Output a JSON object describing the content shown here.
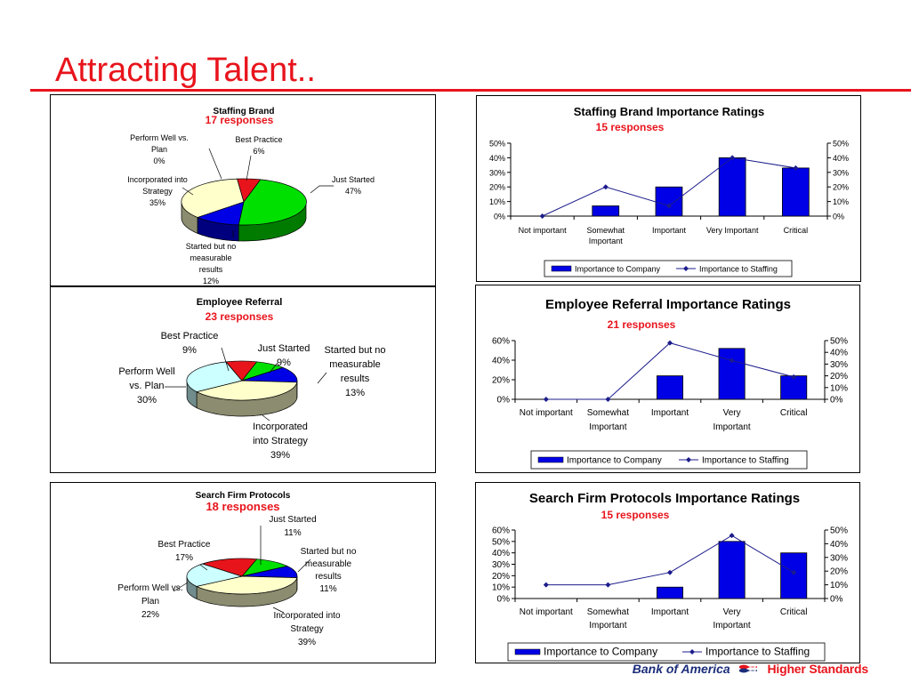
{
  "slide": {
    "title": "Attracting Talent..",
    "logo_text": "Bank of America",
    "tagline": "Higher Standards"
  },
  "colors": {
    "title_red": "#e8141c",
    "company_bar": "#0000e6",
    "staffing_line": "#1c1c8c"
  },
  "chart_data": [
    {
      "type": "pie",
      "title": "Staffing Brand",
      "subtitle": "17 responses",
      "slices": [
        {
          "label": "Just Started",
          "value": 47,
          "value_label": "47%",
          "color": "#00e000"
        },
        {
          "label": "Started but no measurable results",
          "value": 12,
          "value_label": "12%",
          "color": "#0000e6"
        },
        {
          "label": "Incorporated into Strategy",
          "value": 35,
          "value_label": "35%",
          "color": "#ffffcc"
        },
        {
          "label": "Perform Well vs. Plan",
          "value": 0,
          "value_label": "0%",
          "color": "#ccffff"
        },
        {
          "label": "Best Practice",
          "value": 6,
          "value_label": "6%",
          "color": "#e8141c"
        }
      ]
    },
    {
      "type": "bar",
      "title": "Staffing Brand Importance Ratings",
      "subtitle": "15 responses",
      "categories": [
        "Not important",
        "Somewhat Important",
        "Important",
        "Very Important",
        "Critical"
      ],
      "series": [
        {
          "name": "Importance to Company",
          "type": "bar",
          "axis": "left",
          "values": [
            0,
            7,
            20,
            40,
            33
          ]
        },
        {
          "name": "Importance to Staffing",
          "type": "line",
          "axis": "right",
          "values": [
            0,
            20,
            7,
            40,
            33
          ]
        }
      ],
      "ylim_left": [
        0,
        50
      ],
      "ylim_right": [
        0,
        50
      ],
      "yticks_left": [
        "0%",
        "10%",
        "20%",
        "30%",
        "40%",
        "50%"
      ],
      "yticks_right": [
        "0%",
        "10%",
        "20%",
        "30%",
        "40%",
        "50%"
      ],
      "legend": "bottom"
    },
    {
      "type": "pie",
      "title": "Employee Referral",
      "subtitle": "23  responses",
      "slices": [
        {
          "label": "Just Started",
          "value": 9,
          "value_label": "9%",
          "color": "#00e000"
        },
        {
          "label": "Started but no measurable results",
          "value": 13,
          "value_label": "13%",
          "color": "#0000e6"
        },
        {
          "label": "Incorporated into Strategy",
          "value": 39,
          "value_label": "39%",
          "color": "#ffffcc"
        },
        {
          "label": "Perform Well vs. Plan",
          "value": 30,
          "value_label": "30%",
          "color": "#ccffff"
        },
        {
          "label": "Best Practice",
          "value": 9,
          "value_label": "9%",
          "color": "#e8141c"
        }
      ]
    },
    {
      "type": "bar",
      "title": "Employee Referral Importance Ratings",
      "subtitle": "21 responses",
      "categories": [
        "Not important",
        "Somewhat Important",
        "Important",
        "Very Important",
        "Critical"
      ],
      "series": [
        {
          "name": "Importance to Company",
          "type": "bar",
          "axis": "left",
          "values": [
            0,
            0,
            24,
            52,
            24
          ]
        },
        {
          "name": "Importance to Staffing",
          "type": "line",
          "axis": "right",
          "values": [
            0,
            0,
            48,
            33,
            19
          ]
        }
      ],
      "ylim_left": [
        0,
        60
      ],
      "ylim_right": [
        0,
        50
      ],
      "yticks_left": [
        "0%",
        "20%",
        "40%",
        "60%"
      ],
      "yticks_right": [
        "0%",
        "10%",
        "20%",
        "30%",
        "40%",
        "50%"
      ],
      "legend": "bottom"
    },
    {
      "type": "pie",
      "title": "Search Firm Protocols",
      "subtitle": "18 responses",
      "slices": [
        {
          "label": "Just Started",
          "value": 11,
          "value_label": "11%",
          "color": "#00e000"
        },
        {
          "label": "Started but no measurable results",
          "value": 11,
          "value_label": "11%",
          "color": "#0000e6"
        },
        {
          "label": "Incorporated into Strategy",
          "value": 39,
          "value_label": "39%",
          "color": "#ffffcc"
        },
        {
          "label": "Perform Well vs. Plan",
          "value": 22,
          "value_label": "22%",
          "color": "#ccffff"
        },
        {
          "label": "Best Practice",
          "value": 17,
          "value_label": "17%",
          "color": "#e8141c"
        }
      ]
    },
    {
      "type": "bar",
      "title": "Search Firm Protocols Importance Ratings",
      "subtitle": "15 responses",
      "categories": [
        "Not important",
        "Somewhat Important",
        "Important",
        "Very Important",
        "Critical"
      ],
      "series": [
        {
          "name": "Importance to Company",
          "type": "bar",
          "axis": "left",
          "values": [
            0,
            0,
            10,
            50,
            40
          ]
        },
        {
          "name": "Importance to Staffing",
          "type": "line",
          "axis": "right",
          "values": [
            10,
            10,
            19,
            46,
            19
          ]
        }
      ],
      "ylim_left": [
        0,
        60
      ],
      "ylim_right": [
        0,
        50
      ],
      "yticks_left": [
        "0%",
        "10%",
        "20%",
        "30%",
        "40%",
        "50%",
        "60%"
      ],
      "yticks_right": [
        "0%",
        "10%",
        "20%",
        "30%",
        "40%",
        "50%"
      ],
      "legend": "bottom"
    }
  ]
}
